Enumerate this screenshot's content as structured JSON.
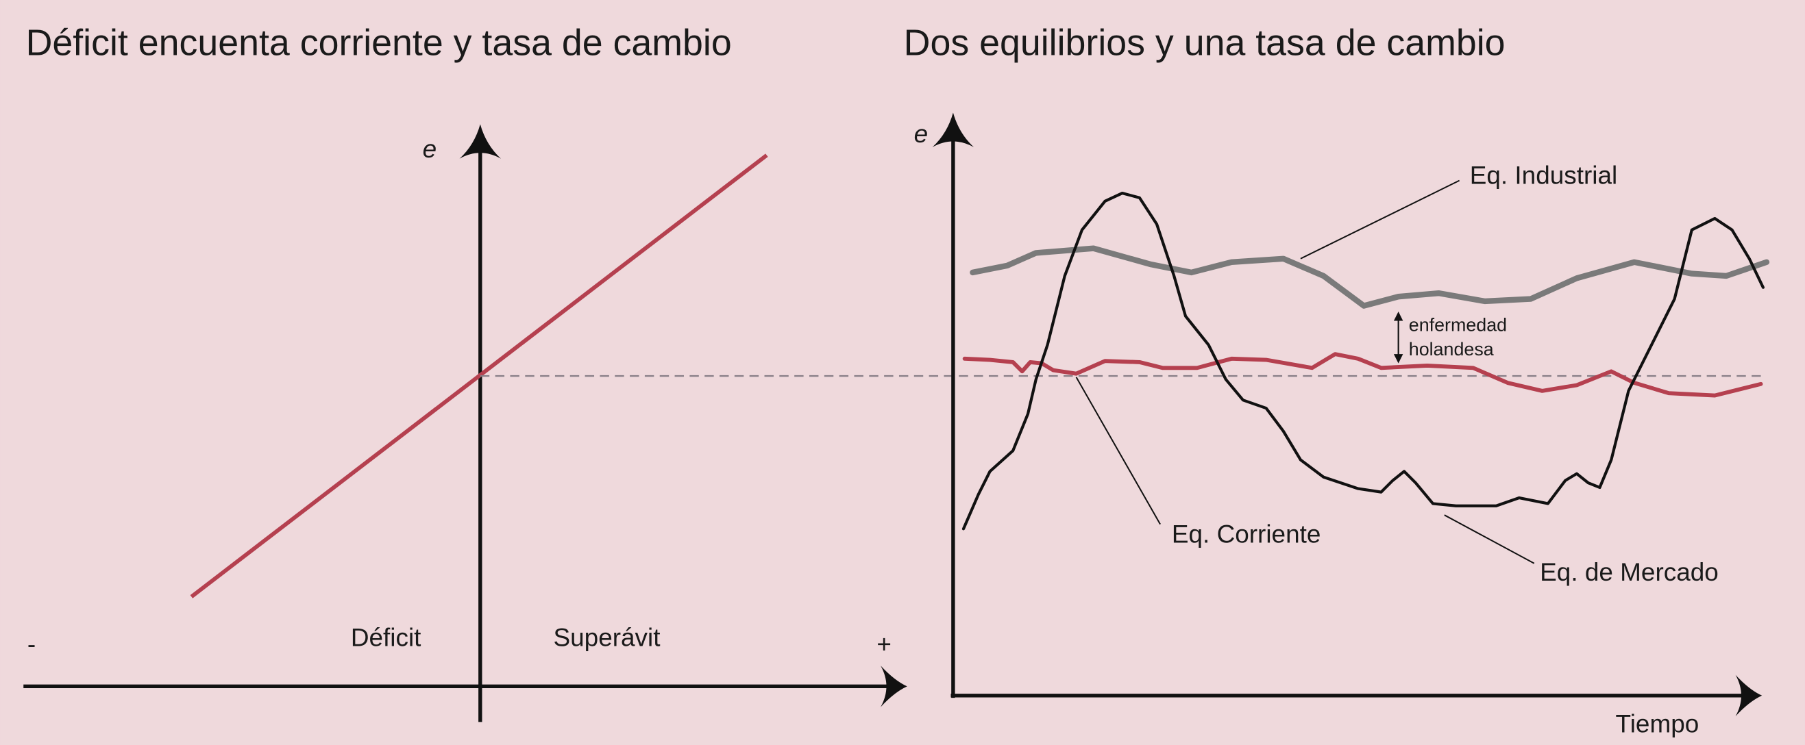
{
  "left_panel": {
    "title": "Déficit encuenta corriente y tasa de cambio",
    "y_axis_label": "e",
    "x_min_label": "-",
    "x_max_label": "+",
    "left_region_label": "Déficit",
    "right_region_label": "Superávit"
  },
  "right_panel": {
    "title": "Dos equilibrios y una tasa de cambio",
    "y_axis_label": "e",
    "x_axis_label": "Tiempo",
    "labels": {
      "industrial": "Eq. Industrial",
      "corriente": "Eq. Corriente",
      "mercado": "Eq. de Mercado",
      "gap_line1": "enfermedad",
      "gap_line2": "holandesa"
    }
  }
}
